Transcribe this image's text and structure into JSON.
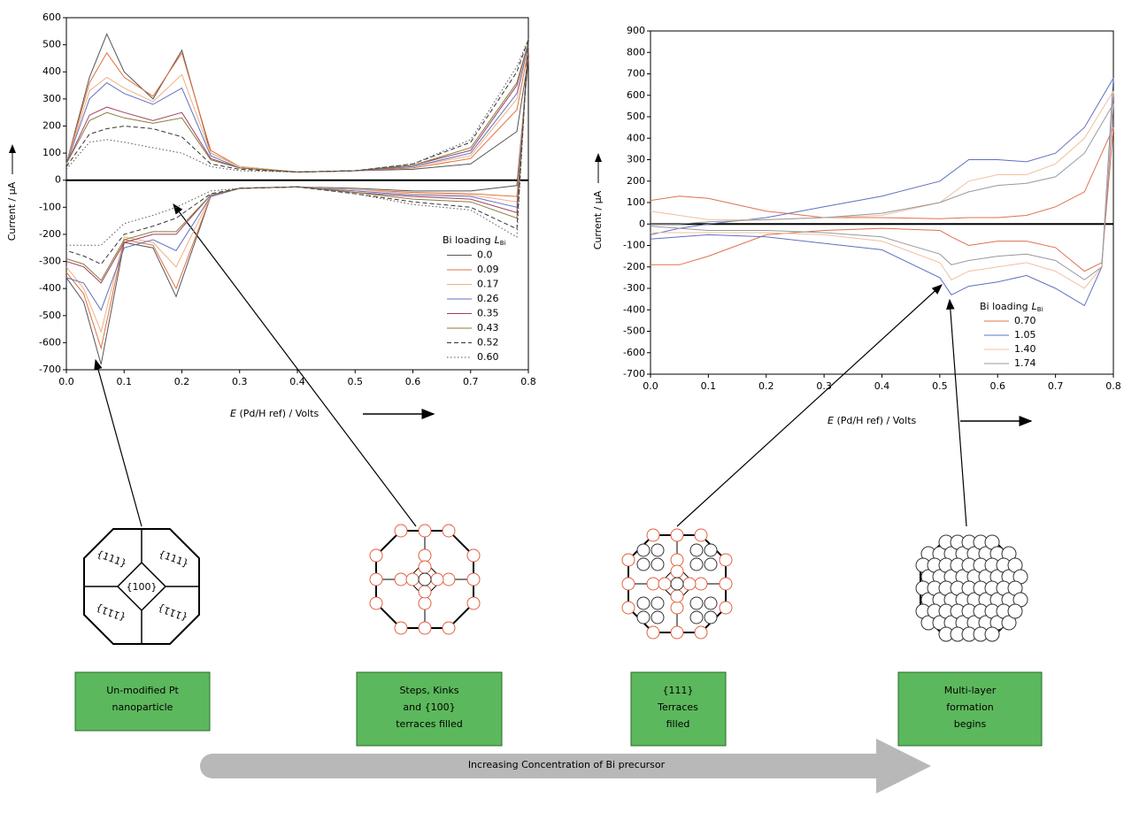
{
  "chart_data": [
    {
      "type": "line",
      "ylabel": "Current / μA",
      "xlabel_var": "E",
      "xlabel": " (Pd/H ref) / Volts",
      "legend_title": "Bi loading",
      "legend_title_var": "L",
      "legend_title_sub": "Bi",
      "legend": "lower right",
      "xlim": [
        0,
        0.8
      ],
      "ylim": [
        -700,
        600
      ],
      "xticks": [
        {
          "value": 0,
          "label": "0.0"
        },
        0.1,
        0.2,
        0.3,
        0.4,
        0.5,
        0.6,
        0.7,
        0.8
      ],
      "yticks": [
        -700,
        -600,
        -500,
        -400,
        -300,
        -200,
        -100,
        0,
        100,
        200,
        300,
        400,
        500,
        600
      ],
      "x": [
        0,
        0.04,
        0.07,
        0.1,
        0.15,
        0.2,
        0.25,
        0.3,
        0.4,
        0.5,
        0.6,
        0.7,
        0.78,
        0.8,
        0.78,
        0.7,
        0.6,
        0.5,
        0.4,
        0.3,
        0.25,
        0.19,
        0.15,
        0.1,
        0.06,
        0.03,
        0
      ],
      "series": [
        {
          "name": "0.0",
          "color": "#555555",
          "style": "solid",
          "values": [
            60,
            380,
            540,
            400,
            300,
            480,
            100,
            50,
            30,
            35,
            40,
            60,
            180,
            450,
            -20,
            -40,
            -40,
            -30,
            -25,
            -30,
            -60,
            -430,
            -250,
            -230,
            -680,
            -450,
            -360
          ]
        },
        {
          "name": "0.09",
          "color": "#e07040",
          "style": "solid",
          "values": [
            60,
            360,
            470,
            380,
            310,
            470,
            110,
            50,
            30,
            35,
            45,
            80,
            260,
            480,
            -60,
            -50,
            -45,
            -35,
            -25,
            -30,
            -60,
            -400,
            -240,
            -220,
            -620,
            -420,
            -340
          ]
        },
        {
          "name": "0.17",
          "color": "#f0b080",
          "style": "solid",
          "values": [
            60,
            330,
            380,
            340,
            290,
            390,
            100,
            50,
            30,
            35,
            50,
            90,
            300,
            500,
            -80,
            -55,
            -50,
            -35,
            -25,
            -30,
            -60,
            -320,
            -230,
            -210,
            -560,
            -400,
            -320
          ]
        },
        {
          "name": "0.26",
          "color": "#6070c0",
          "style": "solid",
          "values": [
            60,
            300,
            360,
            320,
            280,
            340,
            90,
            45,
            30,
            35,
            50,
            100,
            320,
            500,
            -100,
            -60,
            -55,
            -40,
            -25,
            -30,
            -60,
            -260,
            -220,
            -250,
            -480,
            -380,
            -360
          ]
        },
        {
          "name": "0.35",
          "color": "#a04060",
          "style": "solid",
          "values": [
            60,
            240,
            270,
            250,
            220,
            250,
            80,
            45,
            30,
            35,
            55,
            110,
            350,
            510,
            -120,
            -70,
            -60,
            -45,
            -25,
            -30,
            -55,
            -200,
            -200,
            -230,
            -380,
            -320,
            -300
          ]
        },
        {
          "name": "0.43",
          "color": "#8a7a40",
          "style": "solid",
          "values": [
            60,
            220,
            250,
            230,
            210,
            230,
            75,
            45,
            30,
            35,
            55,
            120,
            360,
            510,
            -140,
            -80,
            -70,
            -45,
            -25,
            -30,
            -55,
            -190,
            -190,
            -220,
            -370,
            -310,
            -290
          ]
        },
        {
          "name": "0.52",
          "color": "#333333",
          "style": "dashed",
          "values": [
            50,
            170,
            190,
            200,
            190,
            160,
            60,
            40,
            30,
            35,
            60,
            140,
            400,
            520,
            -180,
            -100,
            -80,
            -50,
            -25,
            -30,
            -50,
            -140,
            -170,
            -200,
            -310,
            -280,
            -260
          ]
        },
        {
          "name": "0.60",
          "color": "#555555",
          "style": "dotted",
          "values": [
            40,
            140,
            150,
            140,
            120,
            100,
            50,
            35,
            30,
            35,
            60,
            150,
            420,
            520,
            -210,
            -110,
            -90,
            -50,
            -25,
            -30,
            -40,
            -100,
            -130,
            -160,
            -240,
            -240,
            -240
          ]
        }
      ]
    },
    {
      "type": "line",
      "ylabel": "Current / μA",
      "xlabel_var": "E",
      "xlabel": " (Pd/H ref) / Volts",
      "legend_title": "Bi loading",
      "legend_title_var": "L",
      "legend_title_sub": "Bi",
      "legend": "lower right",
      "xlim": [
        0,
        0.8
      ],
      "ylim": [
        -700,
        900
      ],
      "xticks": [
        {
          "value": 0,
          "label": "0.0"
        },
        0.1,
        0.2,
        0.3,
        0.4,
        0.5,
        0.6,
        0.7,
        0.8
      ],
      "yticks": [
        -700,
        -600,
        -500,
        -400,
        -300,
        -200,
        -100,
        0,
        100,
        200,
        300,
        400,
        500,
        600,
        700,
        800,
        900
      ],
      "x": [
        0,
        0.05,
        0.1,
        0.2,
        0.3,
        0.4,
        0.5,
        0.55,
        0.6,
        0.65,
        0.7,
        0.75,
        0.8,
        0.78,
        0.75,
        0.7,
        0.65,
        0.6,
        0.55,
        0.52,
        0.5,
        0.4,
        0.3,
        0.2,
        0.1,
        0.05,
        0
      ],
      "series": [
        {
          "name": "0.70",
          "color": "#e07050",
          "style": "solid",
          "values": [
            110,
            130,
            120,
            60,
            30,
            30,
            25,
            30,
            30,
            40,
            80,
            150,
            450,
            -180,
            -220,
            -110,
            -80,
            -80,
            -100,
            -60,
            -30,
            -20,
            -30,
            -50,
            -150,
            -190,
            -190
          ]
        },
        {
          "name": "1.05",
          "color": "#6070c0",
          "style": "solid",
          "values": [
            -50,
            -20,
            0,
            30,
            80,
            130,
            200,
            300,
            300,
            290,
            330,
            450,
            680,
            -200,
            -380,
            -300,
            -240,
            -270,
            -290,
            -330,
            -250,
            -120,
            -90,
            -60,
            -50,
            -60,
            -70
          ]
        },
        {
          "name": "1.40",
          "color": "#f0c0a0",
          "style": "solid",
          "values": [
            60,
            40,
            20,
            20,
            30,
            40,
            100,
            200,
            230,
            230,
            280,
            400,
            620,
            -200,
            -300,
            -220,
            -180,
            -200,
            -220,
            -260,
            -180,
            -80,
            -50,
            -40,
            -40,
            -40,
            -40
          ]
        },
        {
          "name": "1.74",
          "color": "#999999",
          "style": "solid",
          "values": [
            0,
            0,
            10,
            20,
            30,
            50,
            100,
            150,
            180,
            190,
            220,
            330,
            560,
            -200,
            -260,
            -170,
            -140,
            -150,
            -170,
            -190,
            -140,
            -60,
            -40,
            -30,
            -30,
            -20,
            -10
          ]
        }
      ]
    }
  ],
  "diagram": {
    "facets": [
      "{111}",
      "{111}",
      "{100}",
      "{111}",
      "{111}"
    ],
    "stages": [
      {
        "lines": [
          "Un-modified Pt",
          "nanoparticle"
        ]
      },
      {
        "lines": [
          "Steps, Kinks",
          "and {100}",
          "terraces filled"
        ]
      },
      {
        "lines": [
          "{111}",
          "Terraces",
          "filled"
        ]
      },
      {
        "lines": [
          "Multi-layer",
          "formation",
          "begins"
        ]
      }
    ],
    "arrow_label": "Increasing Concentration of Bi precursor"
  }
}
